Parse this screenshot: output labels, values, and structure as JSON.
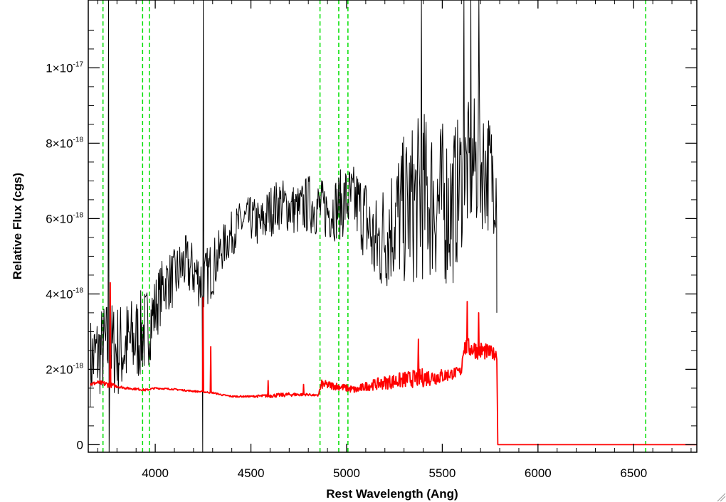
{
  "chart_data": {
    "type": "line",
    "title": "",
    "xlabel": "Rest Wavelength (Ang)",
    "ylabel": "Relative Flux (cgs)",
    "xlim": [
      3650,
      6830
    ],
    "ylim": [
      -2e-19,
      1.18e-17
    ],
    "x_ticks": [
      4000,
      4500,
      5000,
      5500,
      6000,
      6500
    ],
    "x_tick_labels": [
      "4000",
      "4500",
      "5000",
      "5500",
      "6000",
      "6500"
    ],
    "y_ticks": [
      {
        "value": 0,
        "mantissa": "0",
        "exp": ""
      },
      {
        "value": 2e-18,
        "mantissa": "2×10",
        "exp": "-18"
      },
      {
        "value": 4e-18,
        "mantissa": "4×10",
        "exp": "-18"
      },
      {
        "value": 6e-18,
        "mantissa": "6×10",
        "exp": "-18"
      },
      {
        "value": 8e-18,
        "mantissa": "8×10",
        "exp": "-18"
      },
      {
        "value": 1e-17,
        "mantissa": "1×10",
        "exp": "-17"
      }
    ],
    "vertical_lines": [
      3727,
      3934,
      3969,
      4861,
      4959,
      5007,
      6563
    ],
    "series": [
      {
        "color": "#000000",
        "style": "noisy-spectrum",
        "x": [
          3660,
          3700,
          3750,
          3800,
          3850,
          3900,
          3950,
          4000,
          4050,
          4100,
          4150,
          4200,
          4250,
          4300,
          4350,
          4400,
          4450,
          4500,
          4550,
          4600,
          4650,
          4700,
          4750,
          4800,
          4850,
          4900,
          4950,
          5000,
          5050,
          5100,
          5150,
          5200,
          5250,
          5300,
          5350,
          5400,
          5450,
          5500,
          5550,
          5600,
          5650,
          5700,
          5750,
          5785
        ],
        "y": [
          2.2e-18,
          2.4e-18,
          2.6e-18,
          2.5e-18,
          2.6e-18,
          2.8e-18,
          3e-18,
          3.6e-18,
          4.3e-18,
          4.4e-18,
          4.8e-18,
          4.6e-18,
          4.3e-18,
          4.7e-18,
          5.2e-18,
          5.6e-18,
          5.9e-18,
          6e-18,
          5.8e-18,
          6.2e-18,
          6.4e-18,
          6.3e-18,
          6.2e-18,
          6.4e-18,
          6.3e-18,
          6.2e-18,
          6.3e-18,
          6.5e-18,
          6.4e-18,
          6e-18,
          5.2e-18,
          5.6e-18,
          6e-18,
          6.2e-18,
          6.4e-18,
          6.6e-18,
          6.5e-18,
          6.4e-18,
          6.3e-18,
          7e-18,
          7.4e-18,
          7.5e-18,
          7.2e-18,
          7e-18
        ],
        "amplitude": [
          1.2e-18,
          1.2e-18,
          1.3e-18,
          1.3e-18,
          1.3e-18,
          1.2e-18,
          1.2e-18,
          9e-19,
          8e-19,
          8e-19,
          8e-19,
          8e-19,
          8e-19,
          8e-19,
          6e-19,
          6e-19,
          6e-19,
          6e-19,
          7e-19,
          7e-19,
          7e-19,
          7e-19,
          7e-19,
          8e-19,
          8e-19,
          8e-19,
          9e-19,
          1e-18,
          1e-18,
          1.2e-18,
          1.4e-18,
          1.6e-18,
          1.8e-18,
          2e-18,
          2.2e-18,
          2.3e-18,
          2.2e-18,
          2.2e-18,
          2.2e-18,
          1.8e-18,
          1.8e-18,
          1.8e-18,
          1.6e-18,
          1.4e-18
        ],
        "spikes": [
          {
            "x": 3755,
            "y": 1.18e-17
          },
          {
            "x": 3758,
            "y": -2e-19
          },
          {
            "x": 4248,
            "y": -2e-19
          },
          {
            "x": 4251,
            "y": 1.18e-17
          },
          {
            "x": 5390,
            "y": 1.18e-17
          },
          {
            "x": 5612,
            "y": 1.18e-17
          },
          {
            "x": 5650,
            "y": 1.18e-17
          },
          {
            "x": 5690,
            "y": 1.18e-17
          }
        ]
      },
      {
        "color": "#ff0000",
        "style": "error-spectrum",
        "x": [
          3660,
          3700,
          3750,
          3800,
          3850,
          3900,
          3950,
          4000,
          4100,
          4200,
          4300,
          4350,
          4400,
          4500,
          4600,
          4700,
          4800,
          4850,
          4870,
          4950,
          5050,
          5100,
          5200,
          5300,
          5400,
          5500,
          5600,
          5610,
          5700,
          5785,
          5790,
          6830
        ],
        "y": [
          1.6e-18,
          1.65e-18,
          1.6e-18,
          1.55e-18,
          1.5e-18,
          1.48e-18,
          1.45e-18,
          1.5e-18,
          1.47e-18,
          1.42e-18,
          1.38e-18,
          1.32e-18,
          1.28e-18,
          1.28e-18,
          1.3e-18,
          1.33e-18,
          1.33e-18,
          1.3e-18,
          1.6e-18,
          1.55e-18,
          1.45e-18,
          1.55e-18,
          1.65e-18,
          1.72e-18,
          1.78e-18,
          1.82e-18,
          1.95e-18,
          2.6e-18,
          2.5e-18,
          2.4e-18,
          0,
          0
        ],
        "amplitude": [
          5e-20,
          5e-20,
          8e-20,
          4e-20,
          3e-20,
          3e-20,
          3e-20,
          2e-20,
          2e-20,
          2e-20,
          2e-20,
          2e-20,
          2e-20,
          2e-20,
          5e-20,
          5e-20,
          3e-20,
          2e-20,
          1.2e-19,
          1e-19,
          1e-19,
          1.2e-19,
          1.8e-19,
          2.2e-19,
          2.5e-19,
          2e-19,
          1.2e-19,
          2.5e-19,
          2.5e-19,
          1.5e-19,
          0,
          0
        ],
        "spikes": [
          {
            "x": 3765,
            "y": 4.3e-18
          },
          {
            "x": 4250,
            "y": 3.9e-18
          },
          {
            "x": 4290,
            "y": 2.6e-18
          },
          {
            "x": 4590,
            "y": 1.7e-18
          },
          {
            "x": 4775,
            "y": 1.6e-18
          },
          {
            "x": 5375,
            "y": 2.8e-18
          },
          {
            "x": 5630,
            "y": 3.8e-18
          },
          {
            "x": 5690,
            "y": 3.5e-18
          }
        ]
      }
    ]
  }
}
